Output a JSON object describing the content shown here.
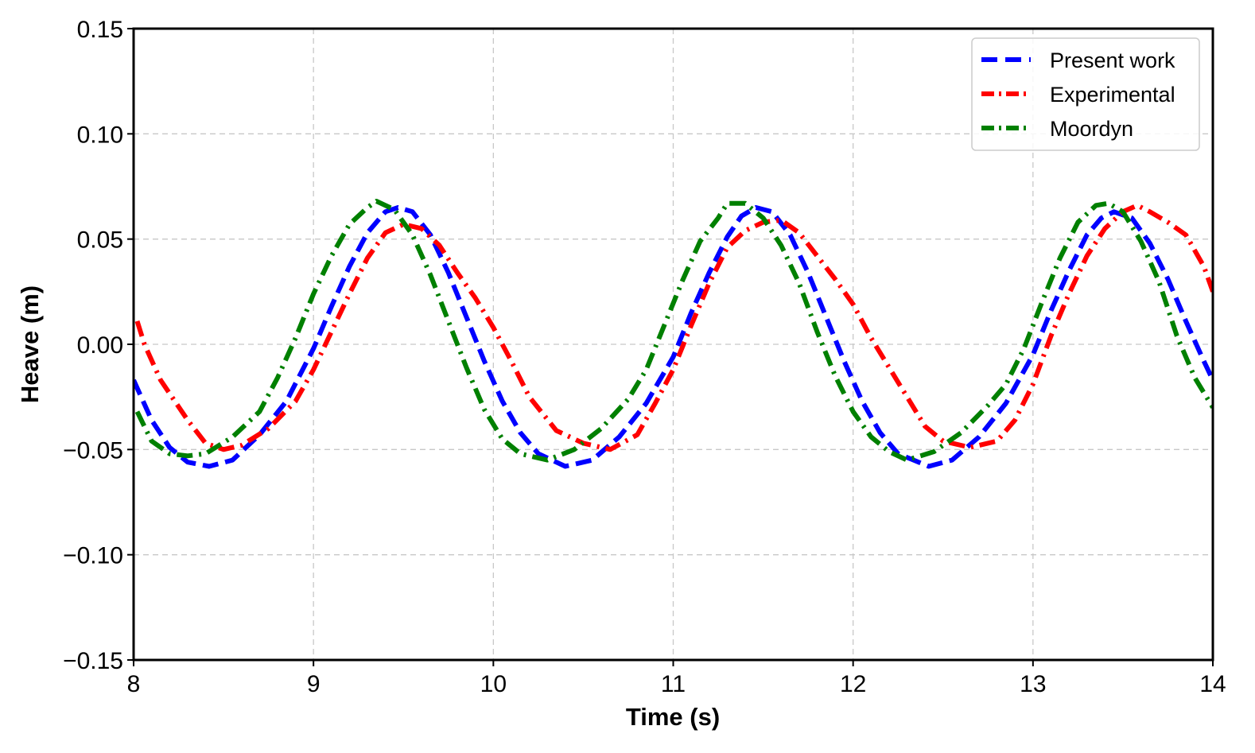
{
  "chart_data": {
    "type": "line",
    "title": "",
    "xlabel": "Time (s)",
    "ylabel": "Heave (m)",
    "xlim": [
      8,
      14
    ],
    "ylim": [
      -0.15,
      0.15
    ],
    "grid": true,
    "legend_position": "top-right",
    "x_ticks": [
      8,
      9,
      10,
      11,
      12,
      13,
      14
    ],
    "x_tick_labels": [
      "8",
      "9",
      "10",
      "11",
      "12",
      "13",
      "14"
    ],
    "y_ticks": [
      -0.15,
      -0.1,
      -0.05,
      0.0,
      0.05,
      0.1,
      0.15
    ],
    "y_tick_labels": [
      "−0.15",
      "−0.10",
      "−0.05",
      "0.00",
      "0.05",
      "0.10",
      "0.15"
    ],
    "series": [
      {
        "name": "Present work",
        "color": "#0000ff",
        "style": "dashed",
        "x": [
          8.0,
          8.1,
          8.2,
          8.3,
          8.42,
          8.55,
          8.7,
          8.85,
          9.0,
          9.1,
          9.2,
          9.3,
          9.4,
          9.47,
          9.55,
          9.65,
          9.75,
          9.85,
          9.95,
          10.05,
          10.15,
          10.25,
          10.4,
          10.55,
          10.7,
          10.85,
          11.0,
          11.1,
          11.2,
          11.3,
          11.38,
          11.46,
          11.55,
          11.65,
          11.75,
          11.85,
          11.95,
          12.05,
          12.15,
          12.25,
          12.42,
          12.55,
          12.7,
          12.85,
          13.0,
          13.1,
          13.2,
          13.3,
          13.38,
          13.45,
          13.55,
          13.65,
          13.75,
          13.85,
          13.95,
          14.0
        ],
        "y": [
          -0.017,
          -0.036,
          -0.049,
          -0.056,
          -0.058,
          -0.055,
          -0.043,
          -0.027,
          -0.002,
          0.018,
          0.037,
          0.053,
          0.063,
          0.065,
          0.063,
          0.052,
          0.034,
          0.013,
          -0.008,
          -0.027,
          -0.042,
          -0.052,
          -0.058,
          -0.055,
          -0.044,
          -0.028,
          -0.006,
          0.015,
          0.034,
          0.051,
          0.061,
          0.065,
          0.063,
          0.052,
          0.034,
          0.013,
          -0.008,
          -0.027,
          -0.042,
          -0.052,
          -0.058,
          -0.055,
          -0.044,
          -0.028,
          -0.005,
          0.016,
          0.035,
          0.052,
          0.06,
          0.063,
          0.06,
          0.048,
          0.031,
          0.011,
          -0.008,
          -0.017
        ]
      },
      {
        "name": "Experimental",
        "color": "#ff0000",
        "style": "dashdot",
        "x": [
          8.02,
          8.06,
          8.15,
          8.3,
          8.4,
          8.5,
          8.6,
          8.75,
          8.9,
          9.0,
          9.1,
          9.2,
          9.3,
          9.4,
          9.5,
          9.6,
          9.7,
          9.8,
          9.9,
          10.0,
          10.1,
          10.2,
          10.35,
          10.5,
          10.65,
          10.8,
          10.9,
          11.0,
          11.1,
          11.2,
          11.3,
          11.4,
          11.5,
          11.6,
          11.7,
          11.8,
          11.9,
          12.0,
          12.1,
          12.2,
          12.3,
          12.4,
          12.5,
          12.65,
          12.8,
          12.9,
          13.0,
          13.1,
          13.2,
          13.3,
          13.4,
          13.5,
          13.58,
          13.65,
          13.75,
          13.85,
          13.95,
          14.0
        ],
        "y": [
          0.011,
          0.0,
          -0.017,
          -0.036,
          -0.047,
          -0.05,
          -0.048,
          -0.04,
          -0.027,
          -0.012,
          0.006,
          0.024,
          0.041,
          0.053,
          0.057,
          0.055,
          0.047,
          0.034,
          0.022,
          0.008,
          -0.008,
          -0.025,
          -0.041,
          -0.047,
          -0.05,
          -0.043,
          -0.028,
          -0.012,
          0.009,
          0.029,
          0.046,
          0.054,
          0.058,
          0.059,
          0.053,
          0.042,
          0.031,
          0.019,
          0.003,
          -0.011,
          -0.025,
          -0.039,
          -0.046,
          -0.049,
          -0.046,
          -0.036,
          -0.019,
          0.004,
          0.024,
          0.042,
          0.055,
          0.063,
          0.066,
          0.063,
          0.058,
          0.052,
          0.037,
          0.025
        ]
      },
      {
        "name": "Moordyn",
        "color": "#008000",
        "style": "dashdot",
        "x": [
          8.02,
          8.1,
          8.2,
          8.3,
          8.4,
          8.55,
          8.7,
          8.8,
          8.9,
          9.0,
          9.1,
          9.2,
          9.3,
          9.35,
          9.45,
          9.55,
          9.65,
          9.75,
          9.85,
          9.95,
          10.05,
          10.15,
          10.3,
          10.45,
          10.6,
          10.75,
          10.85,
          10.95,
          11.05,
          11.15,
          11.25,
          11.3,
          11.4,
          11.5,
          11.6,
          11.7,
          11.8,
          11.9,
          12.0,
          12.1,
          12.2,
          12.3,
          12.45,
          12.6,
          12.75,
          12.85,
          12.95,
          13.05,
          13.15,
          13.25,
          13.35,
          13.42,
          13.5,
          13.6,
          13.7,
          13.8,
          13.9,
          14.0
        ],
        "y": [
          -0.032,
          -0.046,
          -0.052,
          -0.053,
          -0.052,
          -0.044,
          -0.032,
          -0.016,
          0.003,
          0.024,
          0.042,
          0.057,
          0.065,
          0.068,
          0.064,
          0.052,
          0.033,
          0.011,
          -0.011,
          -0.031,
          -0.045,
          -0.052,
          -0.055,
          -0.05,
          -0.04,
          -0.026,
          -0.012,
          0.009,
          0.03,
          0.049,
          0.06,
          0.067,
          0.067,
          0.06,
          0.047,
          0.029,
          0.006,
          -0.015,
          -0.032,
          -0.044,
          -0.051,
          -0.055,
          -0.051,
          -0.042,
          -0.029,
          -0.019,
          -0.002,
          0.02,
          0.041,
          0.058,
          0.066,
          0.067,
          0.063,
          0.049,
          0.03,
          0.004,
          -0.016,
          -0.03
        ]
      }
    ]
  }
}
